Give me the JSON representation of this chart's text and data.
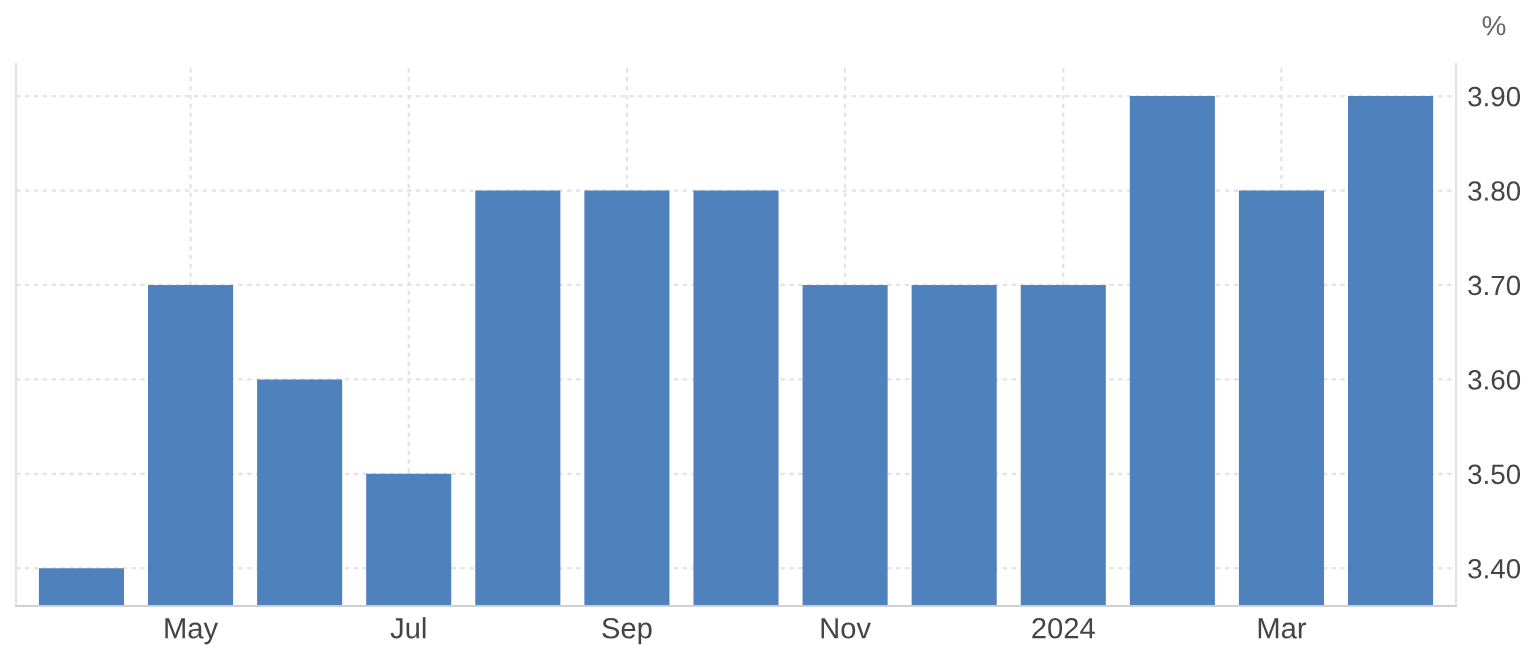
{
  "chart_data": {
    "type": "bar",
    "ylabel": "%",
    "categories": [
      null,
      "May",
      null,
      "Jul",
      null,
      "Sep",
      null,
      "Nov",
      null,
      "2024",
      null,
      "Mar",
      null
    ],
    "values": [
      3.4,
      3.7,
      3.6,
      3.5,
      3.8,
      3.8,
      3.8,
      3.7,
      3.7,
      3.7,
      3.9,
      3.8,
      3.9
    ],
    "color": "#4f81bd",
    "ylim": [
      3.36,
      3.934
    ],
    "yticks": [
      {
        "value": 3.4,
        "label": "3.40"
      },
      {
        "value": 3.5,
        "label": "3.50"
      },
      {
        "value": 3.6,
        "label": "3.60"
      },
      {
        "value": 3.7,
        "label": "3.70"
      },
      {
        "value": 3.8,
        "label": "3.80"
      },
      {
        "value": 3.9,
        "label": "3.90"
      }
    ],
    "grid": true,
    "legend": false
  }
}
